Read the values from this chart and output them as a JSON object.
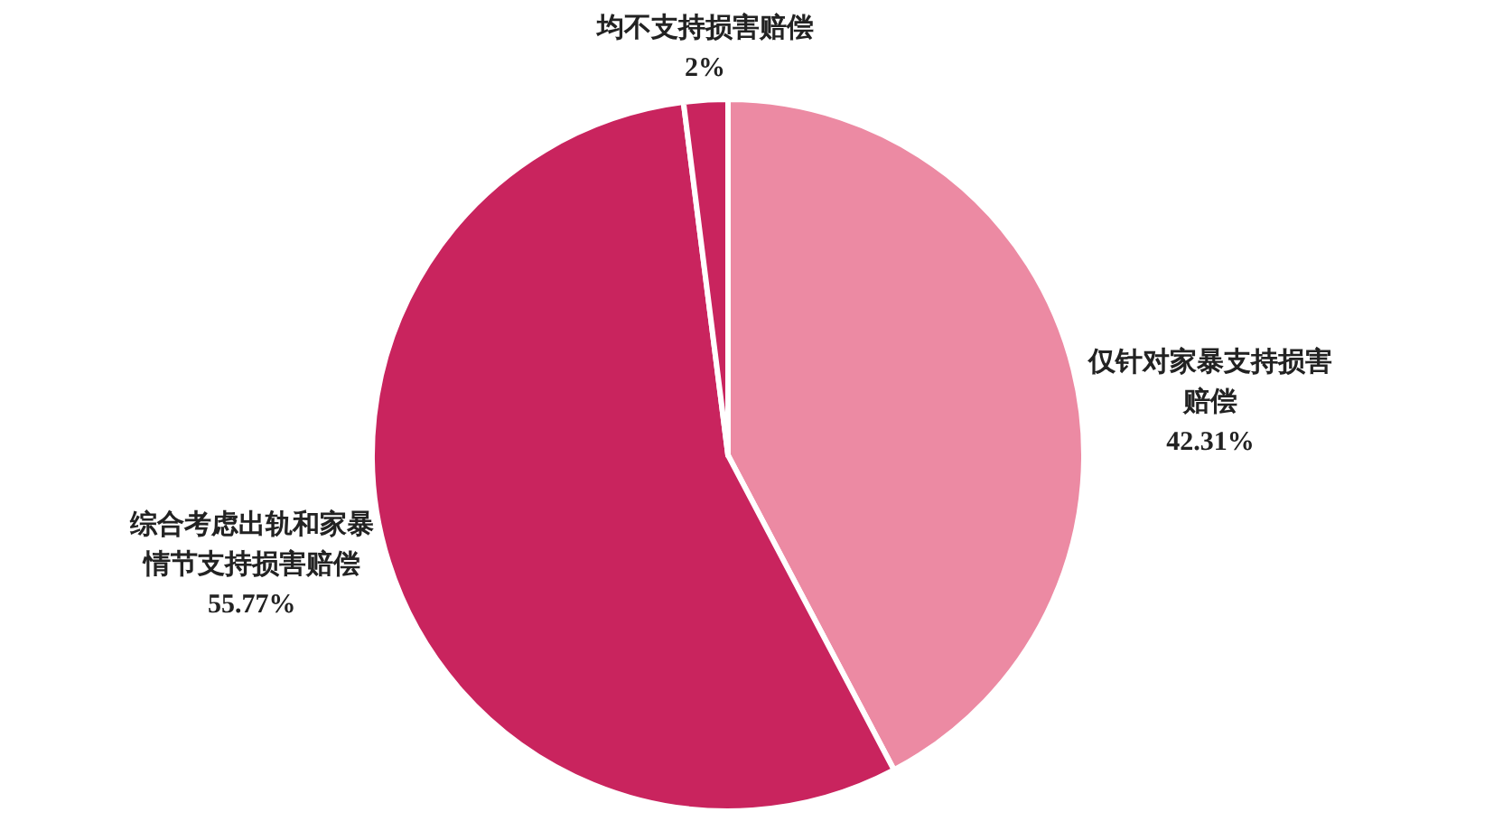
{
  "chart_data": {
    "type": "pie",
    "categories": [
      "仅针对家暴支持损害赔偿",
      "综合考虑出轨和家暴情节支持损害赔偿",
      "均不支持损害赔偿"
    ],
    "values": [
      42.31,
      55.77,
      2
    ],
    "value_labels": [
      "42.31%",
      "55.77%",
      "2%"
    ],
    "colors": [
      "#ec8aa3",
      "#c9245e",
      "#c9245e"
    ],
    "legend": false
  }
}
